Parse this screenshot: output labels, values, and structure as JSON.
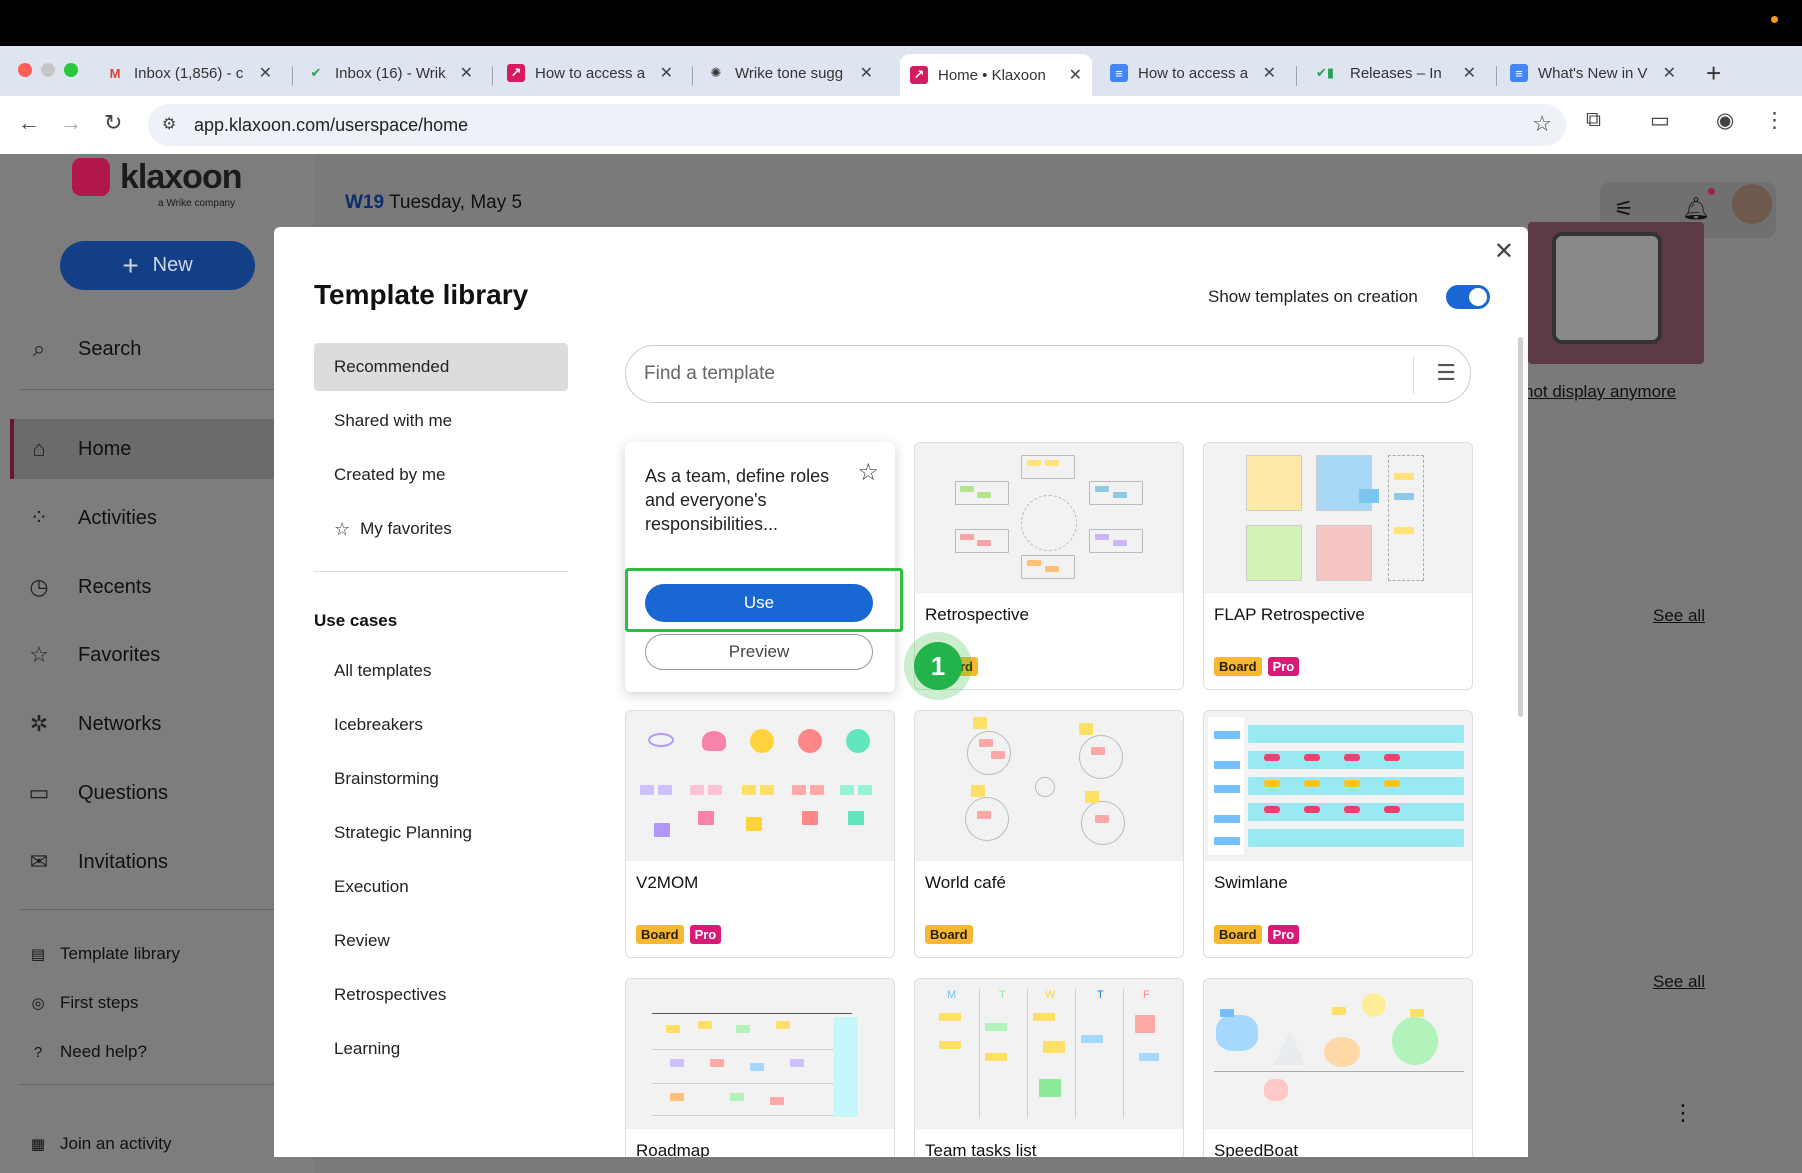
{
  "browser": {
    "tabs": [
      {
        "title": "Inbox (1,856) - c",
        "icon": "gmail-icon"
      },
      {
        "title": "Inbox (16) - Wrik",
        "icon": "wrike-icon"
      },
      {
        "title": "How to access a",
        "icon": "klaxoon-icon"
      },
      {
        "title": "Wrike tone sugg",
        "icon": "openai-icon"
      },
      {
        "title": "Home • Klaxoon",
        "icon": "klaxoon-icon",
        "active": true
      },
      {
        "title": "How to access a",
        "icon": "docs-icon"
      },
      {
        "title": "Releases – In",
        "icon": "wrike-icon"
      },
      {
        "title": "What's New in V",
        "icon": "docs-icon"
      }
    ],
    "url": "app.klaxoon.com/userspace/home"
  },
  "sidebar": {
    "logo_text": "klaxoon",
    "logo_sub": "a Wrike company",
    "new_label": "New",
    "items": [
      {
        "label": "Search",
        "icon": "search-icon"
      },
      {
        "label": "Home",
        "icon": "home-icon"
      },
      {
        "label": "Activities",
        "icon": "grid-icon"
      },
      {
        "label": "Recents",
        "icon": "clock-icon"
      },
      {
        "label": "Favorites",
        "icon": "star-icon"
      },
      {
        "label": "Networks",
        "icon": "network-icon"
      },
      {
        "label": "Questions",
        "icon": "inbox-icon"
      },
      {
        "label": "Invitations",
        "icon": "mail-icon"
      }
    ],
    "bottom": [
      {
        "label": "Template library",
        "icon": "template-icon"
      },
      {
        "label": "First steps",
        "icon": "compass-icon"
      },
      {
        "label": "Need help?",
        "icon": "help-icon"
      },
      {
        "label": "Join an activity",
        "icon": "qr-icon"
      }
    ]
  },
  "main": {
    "week": "W19",
    "date": "Tuesday, May 5",
    "banner_link": "not display anymore",
    "see_all": "See all"
  },
  "modal": {
    "title": "Template library",
    "toggle_label": "Show templates on creation",
    "toggle_on": true,
    "nav": {
      "top": [
        "Recommended",
        "Shared with me",
        "Created by me",
        "My favorites"
      ],
      "use_cases_heading": "Use cases",
      "use_cases": [
        "All templates",
        "Icebreakers",
        "Brainstorming",
        "Strategic Planning",
        "Execution",
        "Review",
        "Retrospectives",
        "Learning"
      ]
    },
    "search_placeholder": "Find a template",
    "hover_card": {
      "description": "As a team, define roles and everyone's responsibilities...",
      "use_label": "Use",
      "preview_label": "Preview",
      "step": "1"
    },
    "templates": [
      {
        "name": "Retrospective",
        "badges": [
          "Board"
        ]
      },
      {
        "name": "FLAP Retrospective",
        "badges": [
          "Board",
          "Pro"
        ]
      },
      {
        "name": "V2MOM",
        "badges": [
          "Board",
          "Pro"
        ]
      },
      {
        "name": "World café",
        "badges": [
          "Board"
        ]
      },
      {
        "name": "Swimlane",
        "badges": [
          "Board",
          "Pro"
        ]
      },
      {
        "name": "Roadmap",
        "badges": []
      },
      {
        "name": "Team tasks list",
        "badges": []
      },
      {
        "name": "SpeedBoat",
        "badges": []
      }
    ],
    "partial_badge": "rd",
    "tasks_days": [
      "M",
      "T",
      "W",
      "T",
      "F"
    ]
  }
}
